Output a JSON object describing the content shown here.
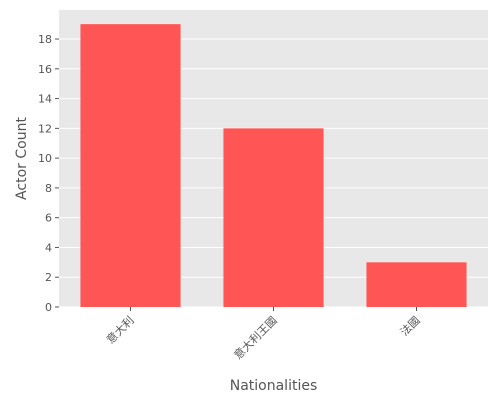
{
  "chart_data": {
    "type": "bar",
    "title": "",
    "xlabel": "Nationalities",
    "ylabel": "Actor Count",
    "categories": [
      "意大利",
      "意大利王國",
      "法國"
    ],
    "values": [
      19,
      12,
      3
    ],
    "ylim": [
      0,
      19.95
    ],
    "yticks": [
      0,
      2,
      4,
      6,
      8,
      10,
      12,
      14,
      16,
      18
    ],
    "grid": true,
    "bar_color": "#ff5555",
    "background_color": "#e8e8e8",
    "grid_color": "#ffffff"
  }
}
